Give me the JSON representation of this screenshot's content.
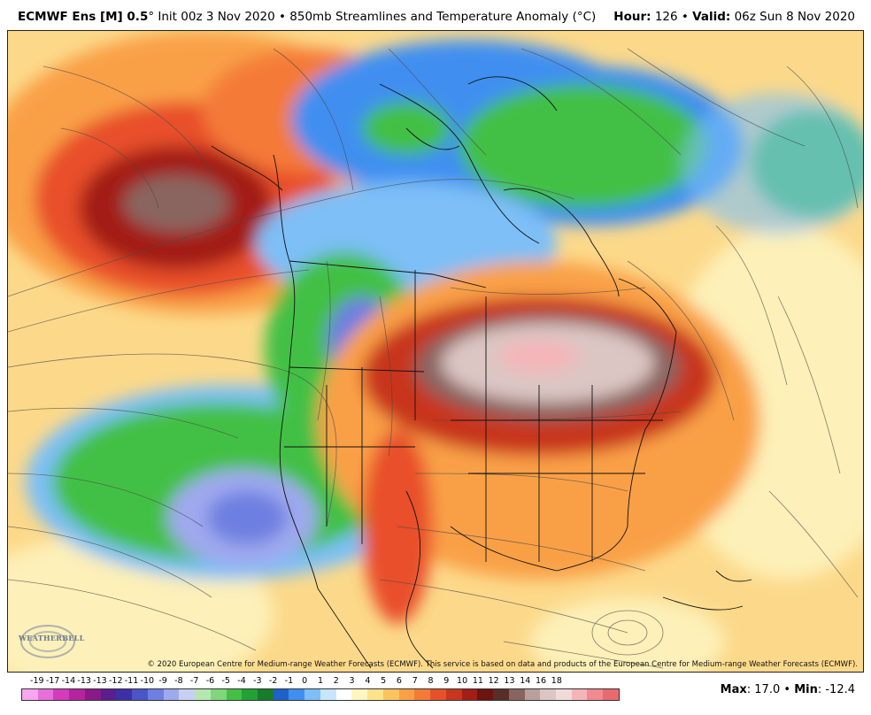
{
  "header": {
    "model": "ECMWF Ens [M] 0.5",
    "degree_mark": "°",
    "init": "Init 00z 3 Nov 2020",
    "separator": "•",
    "product": "850mb Streamlines and Temperature Anomaly (°C)",
    "hour_label": "Hour:",
    "hour_value": "126",
    "valid_label": "Valid:",
    "valid_value": "06z Sun 8 Nov 2020"
  },
  "map": {
    "copyright": "© 2020 European Centre for Medium-range Weather Forecasts (ECMWF). This service is based on data and products of the European Centre for Medium-range Weather Forecasts (ECMWF).",
    "logo_text": "WEATHERBELL",
    "logo_icon": "weatherbell-swirl-logo"
  },
  "colorbar": {
    "labels": [
      "-19",
      "-17",
      "-14",
      "-13",
      "-13",
      "-12",
      "-11",
      "-10",
      "-9",
      "-8",
      "-7",
      "-6",
      "-5",
      "-4",
      "-3",
      "-2",
      "-1",
      "0",
      "1",
      "2",
      "3",
      "4",
      "5",
      "6",
      "7",
      "8",
      "9",
      "10",
      "11",
      "12",
      "13",
      "14",
      "16",
      "18"
    ],
    "colors": [
      "#f7a6f0",
      "#e86fd9",
      "#d43bbd",
      "#b5249e",
      "#8a1a86",
      "#5a1f8f",
      "#3f2fa6",
      "#4a55c8",
      "#6d7fe0",
      "#9fa9ee",
      "#c8cff5",
      "#b5e8b0",
      "#7fd77a",
      "#43c044",
      "#22a234",
      "#167d2b",
      "#1e61c8",
      "#3f8ff0",
      "#7dbff6",
      "#c6e6fb",
      "#ffffff",
      "#fff6c2",
      "#fde38a",
      "#fcc35e",
      "#f9a047",
      "#f47a37",
      "#e8502a",
      "#c8361f",
      "#a31e16",
      "#6b1410",
      "#5a2e28",
      "#8a6560",
      "#b9a09b",
      "#dcc6c3",
      "#f3dada",
      "#f5b5b8",
      "#f08a8e",
      "#e86a6e"
    ]
  },
  "stats": {
    "max_label": "Max",
    "max_value": "17.0",
    "sep": "•",
    "min_label": "Min",
    "min_value": "-12.4"
  }
}
